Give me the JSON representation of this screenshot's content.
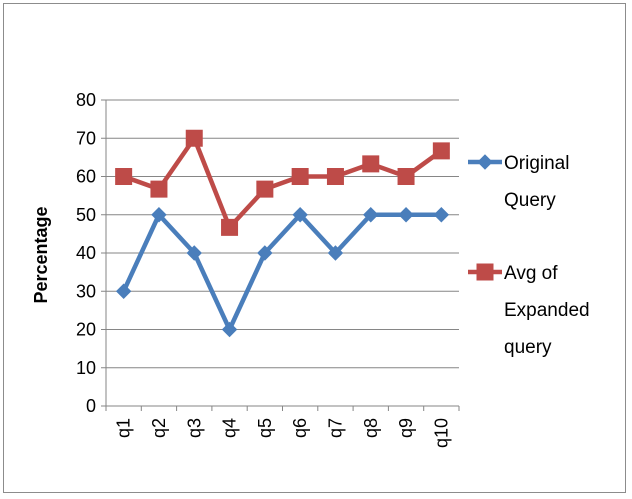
{
  "chart_data": {
    "type": "line",
    "title": "",
    "xlabel": "",
    "ylabel": "Percentage",
    "categories": [
      "q1",
      "q2",
      "q3",
      "q4",
      "q5",
      "q6",
      "q7",
      "q8",
      "q9",
      "q10"
    ],
    "ylim": [
      0,
      80
    ],
    "yticks": [
      0,
      10,
      20,
      30,
      40,
      50,
      60,
      70,
      80
    ],
    "grid": true,
    "legend_position": "right",
    "series": [
      {
        "name": "Original Query",
        "legend_lines": [
          "Original",
          "Query"
        ],
        "color": "#4a7ebb",
        "marker": "diamond",
        "values": [
          30,
          50,
          40,
          20,
          40,
          50,
          40,
          50,
          50,
          50
        ]
      },
      {
        "name": "Avg of Expanded query",
        "legend_lines": [
          "Avg of",
          "Expanded",
          "query"
        ],
        "color": "#be4b48",
        "marker": "square",
        "values": [
          60,
          56.7,
          70,
          46.7,
          56.7,
          60,
          60,
          63.3,
          60,
          66.7
        ]
      }
    ]
  }
}
